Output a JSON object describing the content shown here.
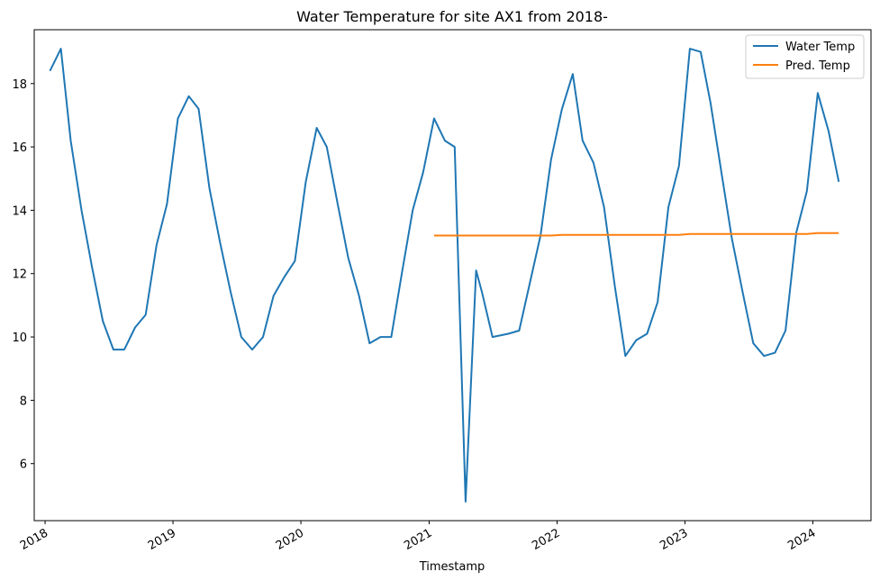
{
  "chart_data": {
    "type": "line",
    "title": "Water Temperature for site AX1 from 2018-",
    "xlabel": "Timestamp",
    "ylabel": "",
    "x_tick_labels": [
      "2018",
      "2019",
      "2020",
      "2021",
      "2022",
      "2023",
      "2024"
    ],
    "y_ticks": [
      6,
      8,
      10,
      12,
      14,
      16,
      18
    ],
    "ylim": [
      4.2,
      19.7
    ],
    "xlim": [
      "2017-12-01",
      "2024-06-15"
    ],
    "grid": false,
    "legend": "top-right",
    "series": [
      {
        "name": "Water Temp",
        "color": "#1f77b4",
        "points": [
          [
            "2018-01-15",
            18.4
          ],
          [
            "2018-02-15",
            19.1
          ],
          [
            "2018-03-15",
            16.2
          ],
          [
            "2018-04-15",
            14.0
          ],
          [
            "2018-05-15",
            12.2
          ],
          [
            "2018-06-15",
            10.5
          ],
          [
            "2018-07-15",
            9.6
          ],
          [
            "2018-08-15",
            9.6
          ],
          [
            "2018-09-15",
            10.3
          ],
          [
            "2018-10-15",
            10.7
          ],
          [
            "2018-11-15",
            12.9
          ],
          [
            "2018-12-15",
            14.2
          ],
          [
            "2019-01-15",
            16.9
          ],
          [
            "2019-02-15",
            17.6
          ],
          [
            "2019-03-15",
            17.2
          ],
          [
            "2019-04-15",
            14.7
          ],
          [
            "2019-05-15",
            13.0
          ],
          [
            "2019-06-15",
            11.4
          ],
          [
            "2019-07-15",
            10.0
          ],
          [
            "2019-08-15",
            9.6
          ],
          [
            "2019-09-15",
            10.0
          ],
          [
            "2019-10-15",
            11.3
          ],
          [
            "2019-11-15",
            11.9
          ],
          [
            "2019-12-15",
            12.4
          ],
          [
            "2020-01-15",
            14.9
          ],
          [
            "2020-02-15",
            16.6
          ],
          [
            "2020-03-15",
            16.0
          ],
          [
            "2020-04-15",
            14.2
          ],
          [
            "2020-05-15",
            12.5
          ],
          [
            "2020-06-15",
            11.3
          ],
          [
            "2020-07-15",
            9.8
          ],
          [
            "2020-08-15",
            10.0
          ],
          [
            "2020-09-15",
            10.0
          ],
          [
            "2020-10-15",
            12.0
          ],
          [
            "2020-11-15",
            14.0
          ],
          [
            "2020-12-15",
            15.2
          ],
          [
            "2021-01-15",
            16.9
          ],
          [
            "2021-02-15",
            16.2
          ],
          [
            "2021-03-15",
            16.0
          ],
          [
            "2021-04-15",
            4.8
          ],
          [
            "2021-05-15",
            12.1
          ],
          [
            "2021-06-01",
            11.4
          ],
          [
            "2021-07-01",
            10.0
          ],
          [
            "2021-08-15",
            10.1
          ],
          [
            "2021-09-15",
            10.2
          ],
          [
            "2021-11-15",
            13.2
          ],
          [
            "2021-12-15",
            15.6
          ],
          [
            "2022-01-15",
            17.2
          ],
          [
            "2022-02-15",
            18.3
          ],
          [
            "2022-03-15",
            16.2
          ],
          [
            "2022-04-15",
            15.5
          ],
          [
            "2022-05-15",
            14.1
          ],
          [
            "2022-06-15",
            11.6
          ],
          [
            "2022-07-15",
            9.4
          ],
          [
            "2022-08-15",
            9.9
          ],
          [
            "2022-09-15",
            10.1
          ],
          [
            "2022-10-15",
            11.1
          ],
          [
            "2022-11-15",
            14.1
          ],
          [
            "2022-12-15",
            15.4
          ],
          [
            "2023-01-15",
            19.1
          ],
          [
            "2023-02-15",
            19.0
          ],
          [
            "2023-03-15",
            17.4
          ],
          [
            "2023-04-15",
            15.2
          ],
          [
            "2023-05-15",
            13.1
          ],
          [
            "2023-06-15",
            11.4
          ],
          [
            "2023-07-15",
            9.8
          ],
          [
            "2023-08-15",
            9.4
          ],
          [
            "2023-09-15",
            9.5
          ],
          [
            "2023-10-15",
            10.2
          ],
          [
            "2023-11-15",
            13.3
          ],
          [
            "2023-12-15",
            14.6
          ],
          [
            "2024-01-15",
            17.7
          ],
          [
            "2024-02-15",
            16.5
          ],
          [
            "2024-03-15",
            14.9
          ]
        ]
      },
      {
        "name": "Pred. Temp",
        "color": "#ff7f0e",
        "points": [
          [
            "2021-01-15",
            13.2
          ],
          [
            "2021-06-15",
            13.2
          ],
          [
            "2021-12-15",
            13.2
          ],
          [
            "2022-01-15",
            13.22
          ],
          [
            "2022-06-15",
            13.22
          ],
          [
            "2022-12-15",
            13.22
          ],
          [
            "2023-01-15",
            13.25
          ],
          [
            "2023-06-15",
            13.25
          ],
          [
            "2023-12-15",
            13.25
          ],
          [
            "2024-01-15",
            13.28
          ],
          [
            "2024-03-15",
            13.28
          ]
        ]
      }
    ]
  }
}
